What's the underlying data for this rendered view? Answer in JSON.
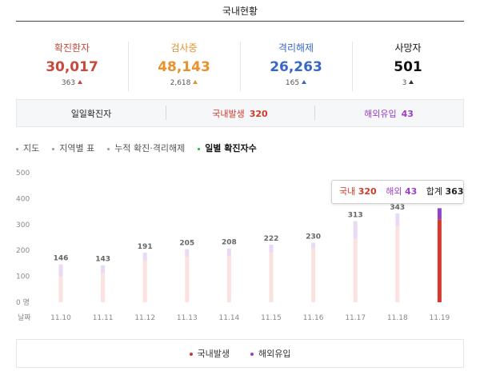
{
  "header": {
    "title": "국내현황"
  },
  "stats": [
    {
      "label": "확진환자",
      "value": "30,017",
      "delta": "363",
      "color": "#c94a3c"
    },
    {
      "label": "검사중",
      "value": "48,143",
      "delta": "2,618",
      "color": "#e8912e"
    },
    {
      "label": "격리해제",
      "value": "26,263",
      "delta": "165",
      "color": "#3867c8"
    },
    {
      "label": "사망자",
      "value": "501",
      "delta": "3",
      "color": "#111111"
    }
  ],
  "subbar": {
    "daily_label": "일일확진자",
    "domestic": {
      "label": "국내발생",
      "count": "320",
      "color": "#cf3b2b"
    },
    "overseas": {
      "label": "해외유입",
      "count": "43",
      "color": "#9a3fc5"
    }
  },
  "tabs": [
    {
      "label": "지도",
      "active": false
    },
    {
      "label": "지역별 표",
      "active": false
    },
    {
      "label": "누적 확진·격리해제",
      "active": false
    },
    {
      "label": "일별 확진자수",
      "active": true
    }
  ],
  "tooltip": {
    "domestic_label": "국내",
    "domestic_value": "320",
    "overseas_label": "해외",
    "overseas_value": "43",
    "total_label": "합계",
    "total_value": "363"
  },
  "legend": {
    "domestic": {
      "label": "국내발생",
      "color": "#cf3b2b"
    },
    "overseas": {
      "label": "해외유입",
      "color": "#9a3fc5"
    }
  },
  "chart_data": {
    "type": "bar",
    "stacked": true,
    "categories": [
      "11.10",
      "11.11",
      "11.12",
      "11.13",
      "11.14",
      "11.15",
      "11.16",
      "11.17",
      "11.18",
      "11.19"
    ],
    "series": [
      {
        "name": "국내발생",
        "values": [
          100,
          113,
          162,
          176,
          178,
          193,
          209,
          245,
          293,
          320
        ],
        "color": "#fbe2e1",
        "highlight_color": "#d63a2f"
      },
      {
        "name": "해외유입",
        "values": [
          46,
          30,
          29,
          29,
          30,
          29,
          21,
          68,
          50,
          43
        ],
        "color": "#e9d9f5",
        "highlight_color": "#8e44c8"
      }
    ],
    "totals": [
      146,
      143,
      191,
      205,
      208,
      222,
      230,
      313,
      343,
      363
    ],
    "highlight_index": 9,
    "y_ticks": [
      "0 명",
      "100",
      "200",
      "300",
      "400",
      "500"
    ],
    "x_axis_label": "날짜",
    "ylim": [
      0,
      500
    ],
    "grid": false
  }
}
